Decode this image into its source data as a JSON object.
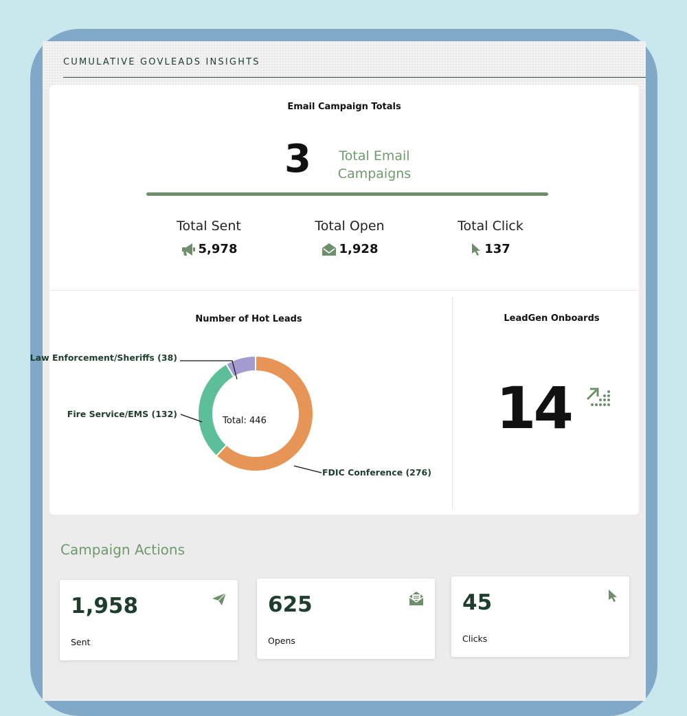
{
  "header": {
    "title": "CUMULATIVE GOVLEADS INSIGHTS"
  },
  "email_totals": {
    "title": "Email Campaign Totals",
    "total_campaigns": "3",
    "total_campaigns_label": "Total Email Campaigns",
    "stats": [
      {
        "label": "Total Sent",
        "value": "5,978",
        "icon": "megaphone-icon"
      },
      {
        "label": "Total Open",
        "value": "1,928",
        "icon": "open-envelope-icon"
      },
      {
        "label": "Total Click",
        "value": "137",
        "icon": "cursor-icon"
      }
    ]
  },
  "hot_leads": {
    "title": "Number of Hot Leads",
    "total_label": "Total: 446",
    "segments": [
      {
        "label": "FDIC Conference (276)",
        "value": 276,
        "color": "#e69556"
      },
      {
        "label": "Fire Service/EMS (132)",
        "value": 132,
        "color": "#5cbf9a"
      },
      {
        "label": "Law Enforcement/Sheriffs (38)",
        "value": 38,
        "color": "#a49cd0"
      }
    ]
  },
  "leadgen": {
    "title": "LeadGen Onboards",
    "value": "14",
    "icon": "trend-up-dots-icon"
  },
  "campaign_actions": {
    "title": "Campaign Actions",
    "cards": [
      {
        "value": "1,958",
        "label": "Sent",
        "icon": "paper-plane-icon"
      },
      {
        "value": "625",
        "label": "Opens",
        "icon": "envelope-open-icon"
      },
      {
        "value": "45",
        "label": "Clicks",
        "icon": "cursor-icon"
      }
    ]
  },
  "colors": {
    "accent_green": "#6d8f6a",
    "dark_green": "#1e3d2c",
    "background": "#c8e8ed",
    "frame": "#81a8c6"
  }
}
